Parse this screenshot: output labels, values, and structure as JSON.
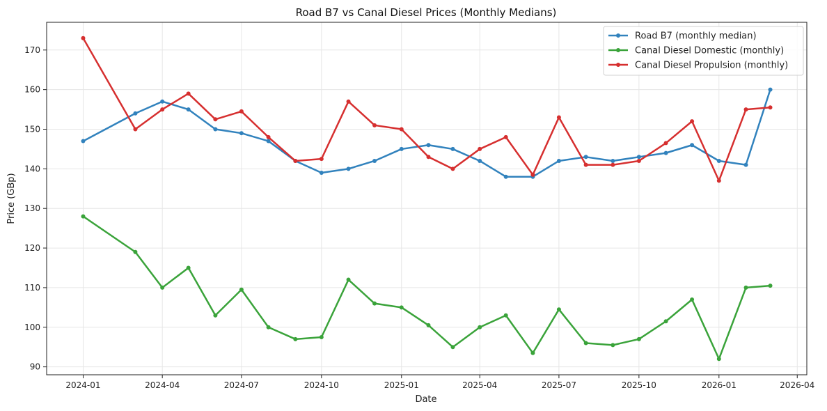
{
  "chart_data": {
    "type": "line",
    "title": "Road B7 vs Canal Diesel Prices (Monthly Medians)",
    "xlabel": "Date",
    "ylabel": "Price (GBp)",
    "xlim": [
      "2023-11-20",
      "2026-04-12"
    ],
    "ylim": [
      88,
      177
    ],
    "x_ticks": [
      "2024-01",
      "2024-04",
      "2024-07",
      "2024-10",
      "2025-01",
      "2025-04",
      "2025-07",
      "2025-10",
      "2026-01",
      "2026-04"
    ],
    "y_ticks": [
      90,
      100,
      110,
      120,
      130,
      140,
      150,
      160,
      170
    ],
    "grid": true,
    "legend_position": "top-right",
    "series": [
      {
        "name": "Road B7 (monthly median)",
        "color": "#3182bd",
        "points": [
          [
            "2024-01-01",
            147
          ],
          [
            "2024-03-01",
            154
          ],
          [
            "2024-04-01",
            157
          ],
          [
            "2024-05-01",
            155
          ],
          [
            "2024-06-01",
            150
          ],
          [
            "2024-07-01",
            149
          ],
          [
            "2024-08-01",
            147
          ],
          [
            "2024-09-01",
            142
          ],
          [
            "2024-10-01",
            139
          ],
          [
            "2024-11-01",
            140
          ],
          [
            "2024-12-01",
            142
          ],
          [
            "2025-01-01",
            145
          ],
          [
            "2025-02-01",
            146
          ],
          [
            "2025-03-01",
            145
          ],
          [
            "2025-04-01",
            142
          ],
          [
            "2025-05-01",
            138
          ],
          [
            "2025-06-01",
            138
          ],
          [
            "2025-07-01",
            142
          ],
          [
            "2025-08-01",
            143
          ],
          [
            "2025-09-01",
            142
          ],
          [
            "2025-10-01",
            143
          ],
          [
            "2025-11-01",
            144
          ],
          [
            "2025-12-01",
            146
          ],
          [
            "2026-01-01",
            142
          ],
          [
            "2026-02-01",
            141
          ],
          [
            "2026-03-01",
            160
          ]
        ]
      },
      {
        "name": "Canal Diesel Domestic (monthly)",
        "color": "#3aa33a",
        "points": [
          [
            "2024-01-01",
            128
          ],
          [
            "2024-03-01",
            119
          ],
          [
            "2024-04-01",
            110
          ],
          [
            "2024-05-01",
            115
          ],
          [
            "2024-06-01",
            103
          ],
          [
            "2024-07-01",
            109.5
          ],
          [
            "2024-08-01",
            100
          ],
          [
            "2024-09-01",
            97
          ],
          [
            "2024-10-01",
            97.5
          ],
          [
            "2024-11-01",
            112
          ],
          [
            "2024-12-01",
            106
          ],
          [
            "2025-01-01",
            105
          ],
          [
            "2025-02-01",
            100.5
          ],
          [
            "2025-03-01",
            95
          ],
          [
            "2025-04-01",
            100
          ],
          [
            "2025-05-01",
            103
          ],
          [
            "2025-06-01",
            93.5
          ],
          [
            "2025-07-01",
            104.5
          ],
          [
            "2025-08-01",
            96
          ],
          [
            "2025-09-01",
            95.5
          ],
          [
            "2025-10-01",
            97
          ],
          [
            "2025-11-01",
            101.5
          ],
          [
            "2025-12-01",
            107
          ],
          [
            "2026-01-01",
            92
          ],
          [
            "2026-02-01",
            110
          ],
          [
            "2026-03-01",
            110.5
          ]
        ]
      },
      {
        "name": "Canal Diesel Propulsion (monthly)",
        "color": "#d62f2f",
        "points": [
          [
            "2024-01-01",
            173
          ],
          [
            "2024-03-01",
            150
          ],
          [
            "2024-04-01",
            155
          ],
          [
            "2024-05-01",
            159
          ],
          [
            "2024-06-01",
            152.5
          ],
          [
            "2024-07-01",
            154.5
          ],
          [
            "2024-08-01",
            148
          ],
          [
            "2024-09-01",
            142
          ],
          [
            "2024-10-01",
            142.5
          ],
          [
            "2024-11-01",
            157
          ],
          [
            "2024-12-01",
            151
          ],
          [
            "2025-01-01",
            150
          ],
          [
            "2025-02-01",
            143
          ],
          [
            "2025-03-01",
            140
          ],
          [
            "2025-04-01",
            145
          ],
          [
            "2025-05-01",
            148
          ],
          [
            "2025-06-01",
            138.5
          ],
          [
            "2025-07-01",
            153
          ],
          [
            "2025-08-01",
            141
          ],
          [
            "2025-09-01",
            141
          ],
          [
            "2025-10-01",
            142
          ],
          [
            "2025-11-01",
            146.5
          ],
          [
            "2025-12-01",
            152
          ],
          [
            "2026-01-01",
            137
          ],
          [
            "2026-02-01",
            155
          ],
          [
            "2026-03-01",
            155.5
          ]
        ]
      }
    ]
  }
}
